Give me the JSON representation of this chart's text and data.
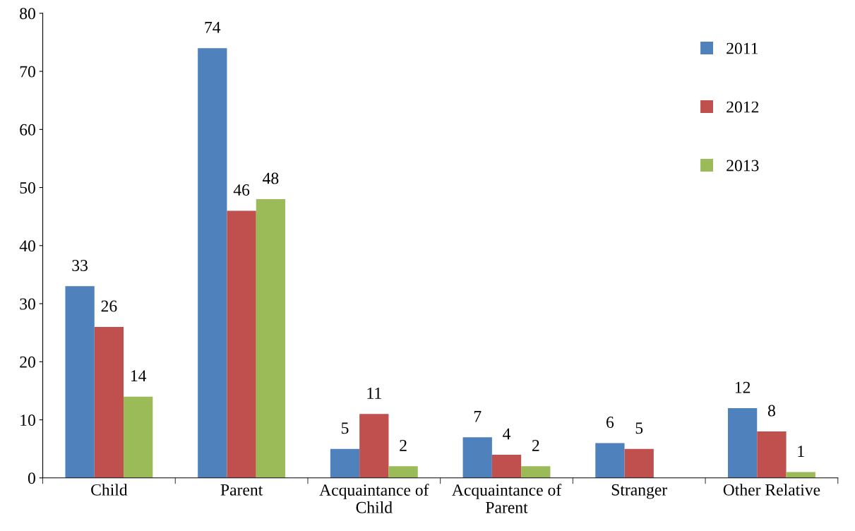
{
  "chart_data": {
    "type": "bar",
    "categories": [
      "Child",
      "Parent",
      "Acquaintance of Child",
      "Acquaintance of Parent",
      "Stranger",
      "Other Relative"
    ],
    "series": [
      {
        "name": "2011",
        "color": "#4f81bd",
        "values": [
          33,
          74,
          5,
          7,
          6,
          12
        ]
      },
      {
        "name": "2012",
        "color": "#c0504d",
        "values": [
          26,
          46,
          11,
          4,
          5,
          8
        ]
      },
      {
        "name": "2013",
        "color": "#9bbb59",
        "values": [
          14,
          48,
          2,
          2,
          null,
          1
        ]
      }
    ],
    "ylim": [
      0,
      80
    ],
    "yticks": [
      0,
      10,
      20,
      30,
      40,
      50,
      60,
      70,
      80
    ],
    "data_labels": true,
    "legend": "top right",
    "grid": false
  }
}
